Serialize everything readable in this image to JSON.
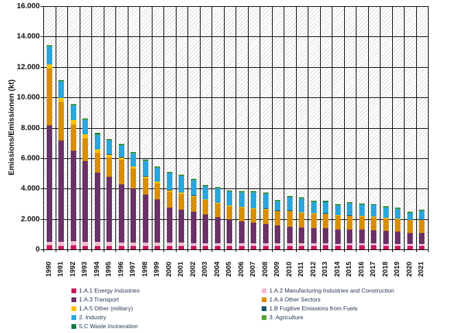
{
  "y_axis": {
    "title": "Emissions/Emissionen (kt)"
  },
  "chart_data": {
    "type": "bar",
    "stacked": true,
    "title": "",
    "xlabel": "",
    "ylabel": "Emissions/Emissionen (kt)",
    "ylim": [
      0,
      16000
    ],
    "ytick_step": 2000,
    "ytick_labels": [
      "16.000",
      "14.000",
      "12.000",
      "10.000",
      "8.000",
      "6.000",
      "4.000",
      "2.000",
      "0"
    ],
    "grid": true,
    "background_hatch": true,
    "legend_position": "bottom",
    "categories": [
      "1990",
      "1991",
      "1992",
      "1993",
      "1994",
      "1995",
      "1996",
      "1997",
      "1998",
      "1999",
      "2000",
      "2001",
      "2002",
      "2003",
      "2004",
      "2005",
      "2006",
      "2007",
      "2008",
      "2009",
      "2010",
      "2011",
      "2012",
      "2013",
      "2014",
      "2015",
      "2016",
      "2017",
      "2018",
      "2019",
      "2020",
      "2021"
    ],
    "series": [
      {
        "name": "1.A.1 Energy Industries",
        "color": "#C8175D",
        "values": [
          270,
          235,
          255,
          225,
          235,
          230,
          225,
          220,
          230,
          230,
          230,
          235,
          235,
          240,
          240,
          240,
          245,
          245,
          245,
          240,
          245,
          245,
          245,
          250,
          245,
          250,
          250,
          250,
          245,
          245,
          235,
          240
        ]
      },
      {
        "name": "1.A.2 Manufacturing Industries and Construction",
        "color": "#F2BCD2",
        "values": [
          230,
          250,
          270,
          270,
          250,
          260,
          245,
          240,
          230,
          220,
          210,
          200,
          190,
          180,
          175,
          165,
          160,
          155,
          150,
          145,
          145,
          140,
          140,
          140,
          135,
          135,
          135,
          135,
          130,
          130,
          125,
          125
        ]
      },
      {
        "name": "1.A.3 Transport",
        "color": "#6A3167",
        "values": [
          7670,
          6695,
          5965,
          5315,
          4575,
          4310,
          3830,
          3540,
          3140,
          2840,
          2330,
          2200,
          2040,
          1860,
          1700,
          1560,
          1440,
          1350,
          1280,
          1180,
          1120,
          1070,
          1030,
          1000,
          950,
          930,
          910,
          880,
          840,
          800,
          740,
          730
        ]
      },
      {
        "name": "1.A.4 Other Sectors",
        "color": "#D78F00",
        "values": [
          3730,
          2500,
          1730,
          1505,
          1280,
          1250,
          1600,
          1320,
          1090,
          1060,
          1040,
          1030,
          990,
          950,
          900,
          870,
          890,
          920,
          960,
          950,
          1000,
          930,
          940,
          950,
          880,
          890,
          880,
          860,
          820,
          810,
          820,
          840
        ]
      },
      {
        "name": "1.A.5 Other (military)",
        "color": "#FDC100",
        "values": [
          260,
          270,
          300,
          255,
          225,
          180,
          150,
          120,
          110,
          100,
          90,
          85,
          75,
          65,
          55,
          45,
          40,
          35,
          35,
          30,
          30,
          30,
          25,
          25,
          25,
          25,
          25,
          25,
          25,
          25,
          20,
          20
        ]
      },
      {
        "name": "1.B Fugitive Emissions from Fuels",
        "color": "#16596F",
        "values": [
          20,
          20,
          20,
          20,
          20,
          20,
          15,
          15,
          15,
          15,
          15,
          15,
          15,
          15,
          15,
          15,
          15,
          15,
          15,
          15,
          15,
          15,
          15,
          15,
          15,
          15,
          15,
          15,
          15,
          15,
          15,
          15
        ]
      },
      {
        "name": "2. Industry",
        "color": "#2AA6DC",
        "values": [
          1160,
          1080,
          930,
          930,
          955,
          900,
          790,
          870,
          985,
          900,
          1080,
          1060,
          1010,
          830,
          925,
          915,
          940,
          1020,
          975,
          600,
          865,
          910,
          735,
          710,
          650,
          765,
          725,
          745,
          685,
          655,
          425,
          550
        ]
      },
      {
        "name": "3. Agriculture",
        "color": "#56A436",
        "values": [
          50,
          50,
          50,
          50,
          55,
          50,
          45,
          45,
          45,
          45,
          45,
          45,
          45,
          40,
          40,
          40,
          40,
          40,
          40,
          40,
          40,
          40,
          40,
          40,
          40,
          40,
          40,
          40,
          40,
          40,
          40,
          40
        ]
      },
      {
        "name": "5.C Waste Incineration",
        "color": "#157A3B",
        "values": [
          50,
          50,
          50,
          50,
          55,
          50,
          50,
          50,
          55,
          50,
          50,
          50,
          50,
          50,
          50,
          50,
          50,
          50,
          50,
          50,
          50,
          50,
          50,
          50,
          50,
          50,
          50,
          50,
          50,
          50,
          50,
          50
        ]
      }
    ],
    "legend_columns": [
      [
        "1.A.1 Energy Industries",
        "1.A.3 Transport",
        "1.A.5 Other (military)",
        "2. Industry",
        "5.C Waste Incineration"
      ],
      [
        "1.A.2 Manufacturing Industries and Construction",
        "1.A.4 Other Sectors",
        "1.B Fugitive Emissions from Fuels",
        "3. Agriculture"
      ]
    ]
  }
}
